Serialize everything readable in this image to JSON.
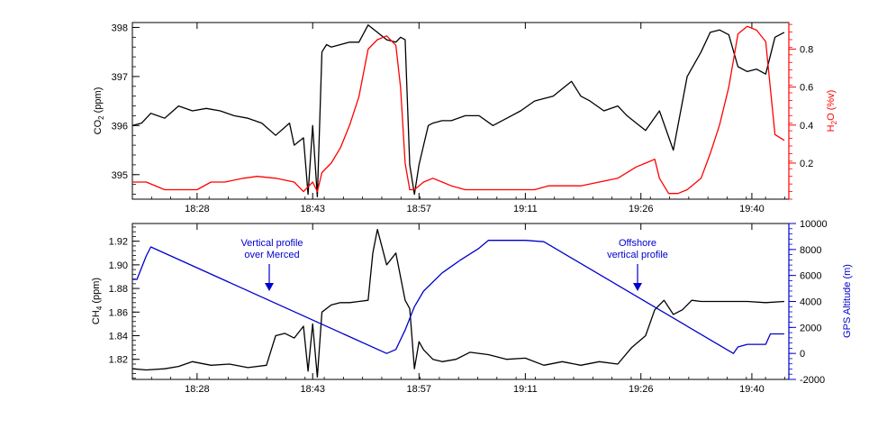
{
  "chart_data": [
    {
      "type": "line",
      "x_ticks": [
        "18:28",
        "18:43",
        "18:57",
        "19:11",
        "19:26",
        "19:40"
      ],
      "y_left": {
        "label_main": "CO",
        "label_sub": "2",
        "label_unit": " (ppm)",
        "ticks": [
          395,
          396,
          397,
          398
        ],
        "ylim": [
          394.5,
          398.1
        ]
      },
      "y_right": {
        "label_main": "H",
        "label_sub": "2",
        "label_unit": "O (%v)",
        "ticks": [
          0.2,
          0.4,
          0.6,
          0.8
        ],
        "ylim": [
          0.01,
          0.94
        ],
        "color": "#ff0000"
      },
      "series": [
        {
          "axis": "left",
          "color": "#000000",
          "x": [
            18.33,
            18.35,
            18.37,
            18.4,
            18.43,
            18.46,
            18.49,
            18.52,
            18.55,
            18.58,
            18.61,
            18.64,
            18.67,
            18.68,
            18.7,
            18.71,
            18.72,
            18.73,
            18.74,
            18.75,
            18.76,
            18.78,
            18.8,
            18.82,
            18.84,
            18.86,
            18.88,
            18.9,
            18.91,
            18.92,
            18.93,
            18.94,
            18.95,
            18.96,
            18.97,
            18.98,
            19.0,
            19.02,
            19.05,
            19.08,
            19.11,
            19.14,
            19.17,
            19.2,
            19.22,
            19.24,
            19.26,
            19.28,
            19.3,
            19.32,
            19.35,
            19.38,
            19.4,
            19.42,
            19.44,
            19.47,
            19.5,
            19.53,
            19.56,
            19.58,
            19.6,
            19.62,
            19.64,
            19.66,
            19.68,
            19.7,
            19.72,
            19.74
          ],
          "y": [
            396.0,
            396.05,
            396.25,
            396.15,
            396.4,
            396.3,
            396.35,
            396.3,
            396.2,
            396.15,
            396.05,
            395.8,
            396.05,
            395.6,
            395.75,
            394.6,
            396.0,
            394.55,
            397.5,
            397.65,
            397.6,
            397.65,
            397.7,
            397.7,
            398.05,
            397.9,
            397.75,
            397.7,
            397.8,
            397.75,
            395.2,
            394.6,
            395.2,
            395.6,
            396.0,
            396.05,
            396.1,
            396.1,
            396.2,
            396.2,
            396.0,
            396.15,
            396.3,
            396.5,
            396.55,
            396.6,
            396.75,
            396.9,
            396.6,
            396.5,
            396.3,
            396.4,
            396.2,
            396.05,
            395.9,
            396.3,
            395.5,
            397.0,
            397.5,
            397.9,
            397.95,
            397.85,
            397.2,
            397.1,
            397.15,
            397.05,
            397.8,
            397.9
          ]
        },
        {
          "axis": "right",
          "color": "#ff0000",
          "x": [
            18.33,
            18.36,
            18.4,
            18.43,
            18.47,
            18.5,
            18.53,
            18.57,
            18.6,
            18.64,
            18.68,
            18.7,
            18.72,
            18.73,
            18.74,
            18.76,
            18.78,
            18.8,
            18.82,
            18.84,
            18.86,
            18.88,
            18.9,
            18.91,
            18.92,
            18.93,
            18.94,
            18.96,
            18.98,
            19.0,
            19.02,
            19.05,
            19.08,
            19.11,
            19.14,
            19.17,
            19.2,
            19.23,
            19.26,
            19.3,
            19.34,
            19.38,
            19.42,
            19.44,
            19.46,
            19.47,
            19.49,
            19.51,
            19.53,
            19.56,
            19.58,
            19.6,
            19.62,
            19.64,
            19.66,
            19.68,
            19.7,
            19.72,
            19.74
          ],
          "y": [
            0.1,
            0.1,
            0.06,
            0.06,
            0.06,
            0.1,
            0.1,
            0.12,
            0.13,
            0.12,
            0.1,
            0.05,
            0.1,
            0.05,
            0.15,
            0.2,
            0.28,
            0.4,
            0.55,
            0.8,
            0.85,
            0.87,
            0.82,
            0.6,
            0.2,
            0.06,
            0.06,
            0.1,
            0.12,
            0.1,
            0.08,
            0.06,
            0.06,
            0.06,
            0.06,
            0.06,
            0.06,
            0.08,
            0.08,
            0.08,
            0.1,
            0.12,
            0.18,
            0.2,
            0.22,
            0.12,
            0.04,
            0.04,
            0.06,
            0.12,
            0.25,
            0.4,
            0.6,
            0.88,
            0.92,
            0.9,
            0.84,
            0.35,
            0.32
          ]
        }
      ]
    },
    {
      "type": "line",
      "x_ticks": [
        "18:28",
        "18:43",
        "18:57",
        "19:11",
        "19:26",
        "19:40"
      ],
      "y_left": {
        "label_main": "CH",
        "label_sub": "4",
        "label_unit": " (ppm)",
        "ticks": [
          1.82,
          1.84,
          1.86,
          1.88,
          1.9,
          1.92
        ],
        "ylim": [
          1.803,
          1.935
        ]
      },
      "y_right": {
        "label": "GPS Altitude (m)",
        "ticks": [
          -2000,
          0,
          2000,
          4000,
          6000,
          8000,
          10000
        ],
        "ylim": [
          -2000,
          10000
        ],
        "color": "#0000cc"
      },
      "annotations": [
        {
          "text_line1": "Vertical profile",
          "text_line2": "over Merced",
          "color": "#0000cc"
        },
        {
          "text_line1": "Offshore",
          "text_line2": "vertical profile",
          "color": "#0000cc"
        }
      ],
      "series": [
        {
          "axis": "left",
          "color": "#000000",
          "x": [
            18.33,
            18.36,
            18.4,
            18.43,
            18.46,
            18.5,
            18.54,
            18.58,
            18.62,
            18.64,
            18.66,
            18.68,
            18.7,
            18.71,
            18.72,
            18.73,
            18.74,
            18.76,
            18.78,
            18.8,
            18.82,
            18.84,
            18.85,
            18.86,
            18.88,
            18.9,
            18.92,
            18.93,
            18.94,
            18.95,
            18.96,
            18.98,
            19.0,
            19.03,
            19.06,
            19.1,
            19.14,
            19.18,
            19.22,
            19.26,
            19.3,
            19.34,
            19.38,
            19.41,
            19.44,
            19.46,
            19.48,
            19.5,
            19.52,
            19.54,
            19.56,
            19.58,
            19.62,
            19.66,
            19.7,
            19.74
          ],
          "y": [
            1.812,
            1.811,
            1.812,
            1.814,
            1.818,
            1.815,
            1.816,
            1.813,
            1.815,
            1.84,
            1.842,
            1.838,
            1.848,
            1.81,
            1.85,
            1.805,
            1.86,
            1.866,
            1.868,
            1.868,
            1.869,
            1.87,
            1.91,
            1.93,
            1.9,
            1.91,
            1.87,
            1.863,
            1.812,
            1.835,
            1.828,
            1.82,
            1.818,
            1.82,
            1.826,
            1.824,
            1.82,
            1.821,
            1.815,
            1.818,
            1.815,
            1.818,
            1.816,
            1.83,
            1.84,
            1.862,
            1.87,
            1.858,
            1.862,
            1.87,
            1.869,
            1.869,
            1.869,
            1.869,
            1.868,
            1.869
          ]
        },
        {
          "axis": "right",
          "color": "#0000cc",
          "x": [
            18.33,
            18.34,
            18.36,
            18.37,
            18.88,
            18.9,
            18.92,
            18.94,
            18.96,
            19.0,
            19.04,
            19.08,
            19.1,
            19.18,
            19.22,
            19.63,
            19.64,
            19.66,
            19.7,
            19.71,
            19.74
          ],
          "y": [
            5700,
            5700,
            7500,
            8200,
            0,
            300,
            1800,
            3600,
            4800,
            6200,
            7200,
            8100,
            8700,
            8700,
            8600,
            0,
            500,
            700,
            700,
            1500,
            1500
          ]
        }
      ]
    }
  ]
}
